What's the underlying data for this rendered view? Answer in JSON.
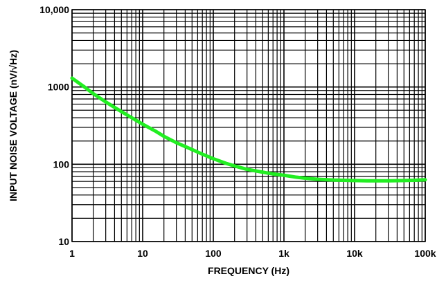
{
  "chart_data": {
    "type": "line",
    "title": "",
    "xlabel": "FREQUENCY (Hz)",
    "ylabel": "INPUT NOISE VOLTAGE (nV/√Hz)",
    "x_scale": "log",
    "y_scale": "log",
    "xlim": [
      1,
      100000
    ],
    "ylim": [
      10,
      10000
    ],
    "x_ticks": [
      {
        "value": 1,
        "label": "1"
      },
      {
        "value": 10,
        "label": "10"
      },
      {
        "value": 100,
        "label": "100"
      },
      {
        "value": 1000,
        "label": "1k"
      },
      {
        "value": 10000,
        "label": "10k"
      },
      {
        "value": 100000,
        "label": "100k"
      }
    ],
    "y_ticks": [
      {
        "value": 10,
        "label": "10"
      },
      {
        "value": 100,
        "label": "100"
      },
      {
        "value": 1000,
        "label": "1000"
      },
      {
        "value": 10000,
        "label": "10,000"
      }
    ],
    "grid": true,
    "legend": "none",
    "series": [
      {
        "color": "#22ee22",
        "x": [
          1,
          1.5,
          2,
          3,
          5,
          7,
          10,
          15,
          20,
          30,
          50,
          70,
          100,
          150,
          200,
          300,
          500,
          700,
          1000,
          1500,
          2000,
          3000,
          5000,
          7000,
          10000,
          15000,
          20000,
          30000,
          50000,
          70000,
          100000
        ],
        "y": [
          1300,
          1000,
          820,
          640,
          480,
          400,
          330,
          270,
          230,
          190,
          155,
          135,
          118,
          103,
          95,
          86,
          79,
          75,
          72,
          68,
          66,
          64,
          62.5,
          62,
          61.5,
          61,
          61,
          61,
          61.5,
          62,
          63
        ]
      }
    ]
  }
}
